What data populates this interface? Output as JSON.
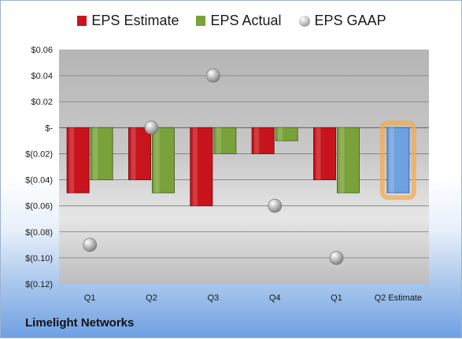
{
  "company": "Limelight Networks",
  "legend": [
    {
      "name": "EPS Estimate",
      "color": "#c8141c",
      "shape": "square"
    },
    {
      "name": "EPS Actual",
      "color": "#7aa23a",
      "shape": "square"
    },
    {
      "name": "EPS GAAP",
      "color": "#a8a8a8",
      "shape": "circle"
    }
  ],
  "chart_data": {
    "type": "bar",
    "categories": [
      "Q1",
      "Q2",
      "Q3",
      "Q4",
      "Q1",
      "Q2 Estimate"
    ],
    "series": [
      {
        "name": "EPS Estimate",
        "type": "bar",
        "color": "#c8141c",
        "values": [
          -0.05,
          -0.04,
          -0.06,
          -0.02,
          -0.04,
          null
        ]
      },
      {
        "name": "EPS Actual",
        "type": "bar",
        "color": "#7aa23a",
        "values": [
          -0.04,
          -0.05,
          -0.02,
          -0.01,
          -0.05,
          null
        ]
      },
      {
        "name": "EPS GAAP",
        "type": "scatter",
        "color": "#a8a8a8",
        "values": [
          -0.09,
          0.0,
          0.04,
          -0.06,
          -0.1,
          null
        ]
      },
      {
        "name": "Q2 Estimate",
        "type": "bar",
        "color": "#6fa0e0",
        "highlight": "#f5a84a",
        "values": [
          null,
          null,
          null,
          null,
          null,
          -0.05
        ]
      }
    ],
    "yticks": [
      0.06,
      0.04,
      0.02,
      0,
      -0.02,
      -0.04,
      -0.06,
      -0.08,
      -0.1,
      -0.12
    ],
    "ytick_labels": [
      "$0.06",
      "$0.04",
      "$0.02",
      "$-",
      "$(0.02)",
      "$(0.04)",
      "$(0.06)",
      "$(0.08)",
      "$(0.10)",
      "$(0.12)"
    ],
    "ylim": [
      -0.12,
      0.06
    ],
    "grid": true,
    "legend_position": "top"
  }
}
